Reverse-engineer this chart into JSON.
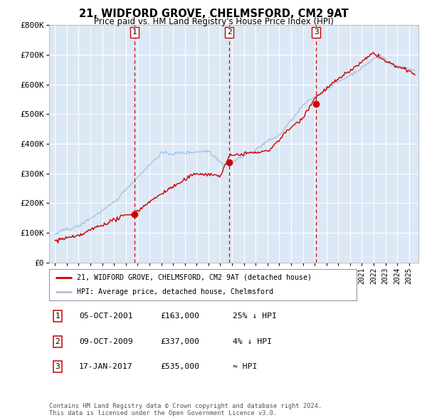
{
  "title": "21, WIDFORD GROVE, CHELMSFORD, CM2 9AT",
  "subtitle": "Price paid vs. HM Land Registry's House Price Index (HPI)",
  "sale_dates": [
    "2001-10-05",
    "2009-10-09",
    "2017-01-17"
  ],
  "sale_prices": [
    163000,
    337000,
    535000
  ],
  "sale_labels": [
    "1",
    "2",
    "3"
  ],
  "sale_info": [
    [
      "1",
      "05-OCT-2001",
      "£163,000",
      "25% ↓ HPI"
    ],
    [
      "2",
      "09-OCT-2009",
      "£337,000",
      "4% ↓ HPI"
    ],
    [
      "3",
      "17-JAN-2017",
      "£535,000",
      "≈ HPI"
    ]
  ],
  "legend_entries": [
    "21, WIDFORD GROVE, CHELMSFORD, CM2 9AT (detached house)",
    "HPI: Average price, detached house, Chelmsford"
  ],
  "hpi_line_color": "#a8c4e0",
  "price_line_color": "#cc0000",
  "marker_color": "#cc0000",
  "vline_color": "#cc0000",
  "plot_bg_color": "#dce8f5",
  "grid_color": "#ffffff",
  "ylim": [
    0,
    800000
  ],
  "yticks": [
    0,
    100000,
    200000,
    300000,
    400000,
    500000,
    600000,
    700000,
    800000
  ],
  "ytick_labels": [
    "£0",
    "£100K",
    "£200K",
    "£300K",
    "£400K",
    "£500K",
    "£600K",
    "£700K",
    "£800K"
  ],
  "xmin": 1994.5,
  "xmax": 2025.8,
  "footer": "Contains HM Land Registry data © Crown copyright and database right 2024.\nThis data is licensed under the Open Government Licence v3.0."
}
